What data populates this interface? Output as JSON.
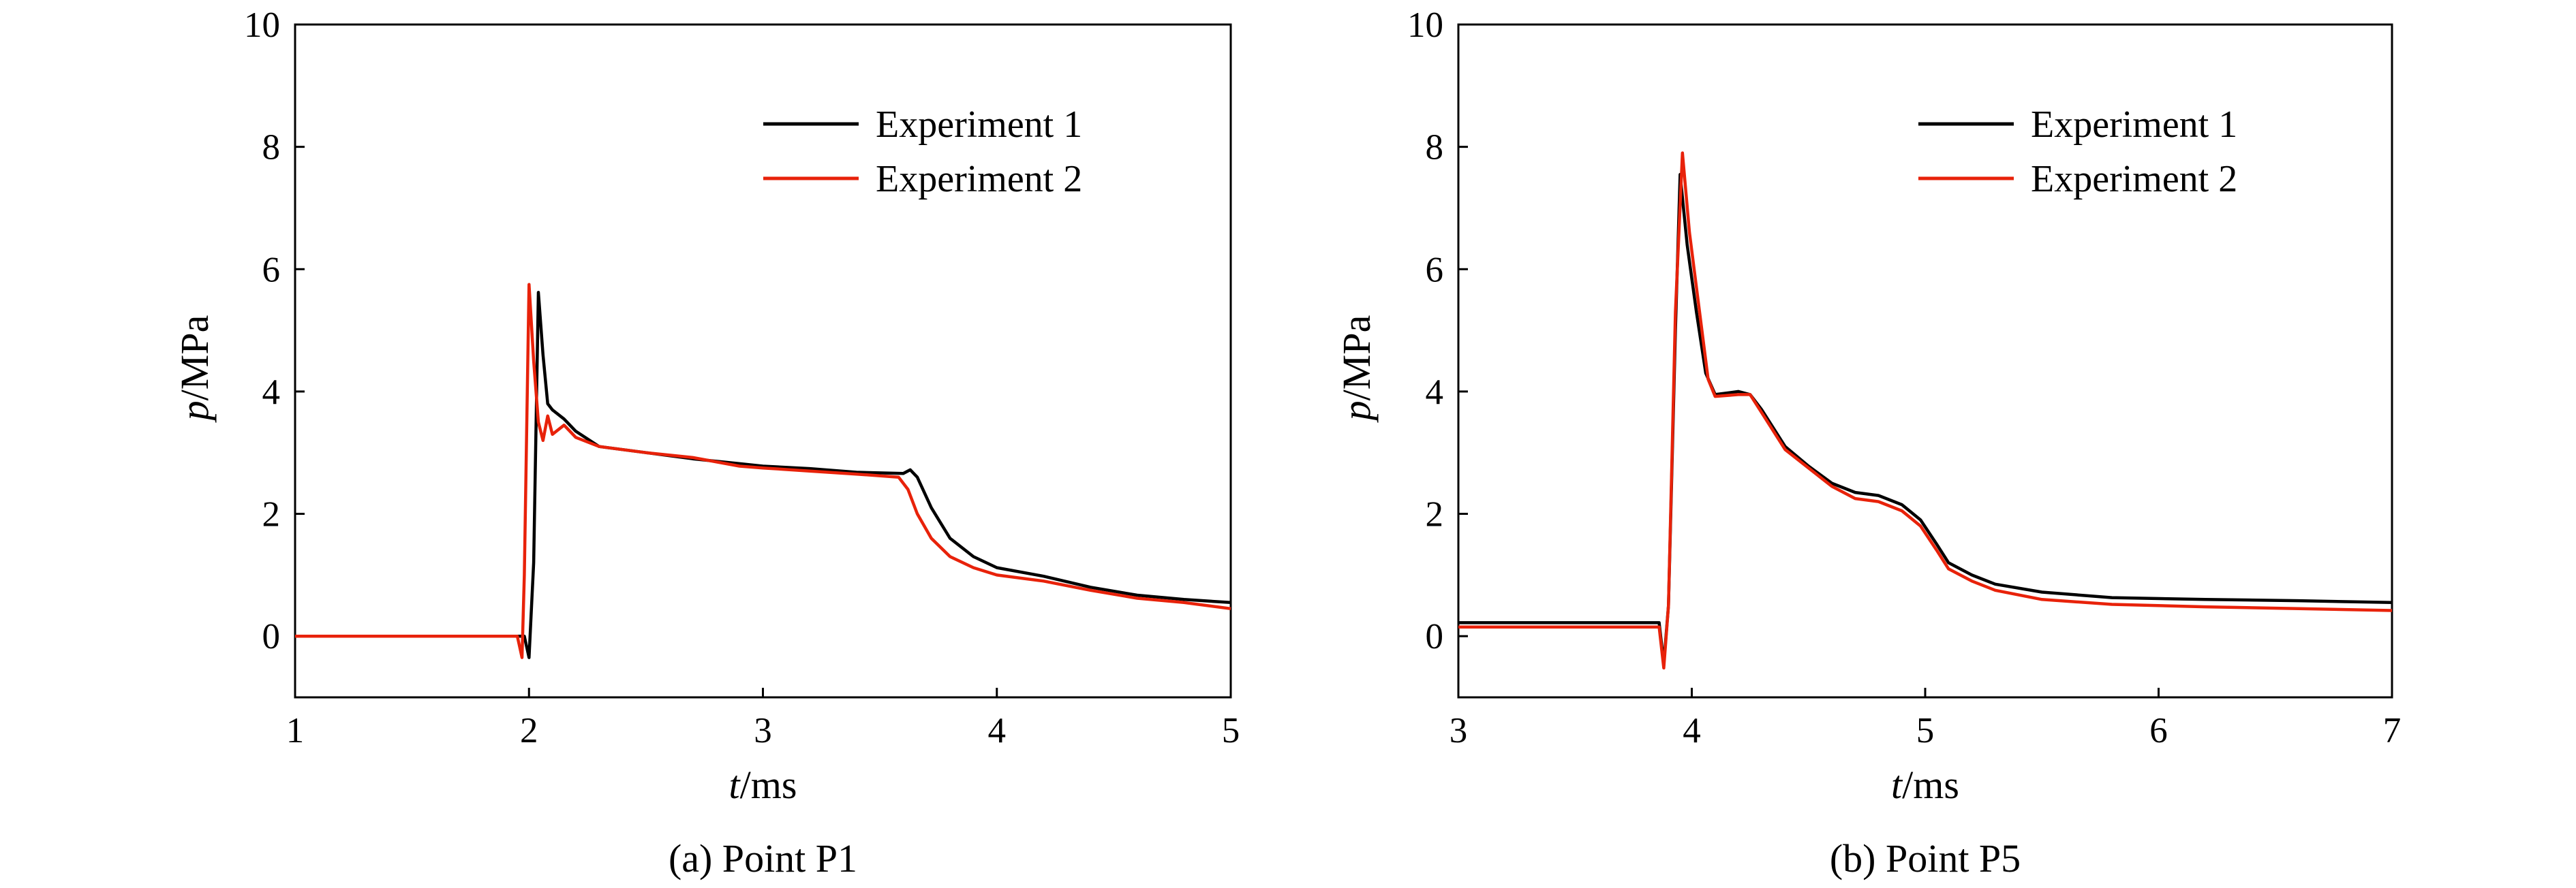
{
  "chart_data": [
    {
      "type": "line",
      "caption": "(a) Point P1",
      "xlabel_var": "t",
      "xlabel_unit": "/ms",
      "ylabel_var": "p",
      "ylabel_unit": "/MPa",
      "xlim": [
        1,
        5
      ],
      "ylim": [
        -1,
        10
      ],
      "xticks": [
        1,
        2,
        3,
        4,
        5
      ],
      "yticks": [
        0,
        2,
        4,
        6,
        8,
        10
      ],
      "grid": false,
      "legend_position": "top-right",
      "series": [
        {
          "name": "Experiment 1",
          "color": "#000000",
          "points": [
            [
              1.0,
              0.0
            ],
            [
              1.5,
              0.0
            ],
            [
              1.98,
              0.0
            ],
            [
              2.0,
              -0.35
            ],
            [
              2.02,
              1.2
            ],
            [
              2.04,
              5.62
            ],
            [
              2.06,
              4.6
            ],
            [
              2.08,
              3.8
            ],
            [
              2.1,
              3.7
            ],
            [
              2.15,
              3.55
            ],
            [
              2.2,
              3.35
            ],
            [
              2.3,
              3.1
            ],
            [
              2.5,
              3.0
            ],
            [
              2.7,
              2.9
            ],
            [
              2.9,
              2.82
            ],
            [
              3.0,
              2.78
            ],
            [
              3.2,
              2.74
            ],
            [
              3.4,
              2.68
            ],
            [
              3.6,
              2.66
            ],
            [
              3.63,
              2.72
            ],
            [
              3.66,
              2.6
            ],
            [
              3.72,
              2.1
            ],
            [
              3.8,
              1.6
            ],
            [
              3.9,
              1.3
            ],
            [
              4.0,
              1.12
            ],
            [
              4.2,
              0.98
            ],
            [
              4.4,
              0.8
            ],
            [
              4.6,
              0.67
            ],
            [
              4.8,
              0.6
            ],
            [
              5.0,
              0.55
            ]
          ]
        },
        {
          "name": "Experiment 2",
          "color": "#e8220a",
          "points": [
            [
              1.0,
              0.0
            ],
            [
              1.5,
              0.0
            ],
            [
              1.95,
              0.0
            ],
            [
              1.97,
              -0.35
            ],
            [
              1.98,
              1.0
            ],
            [
              2.0,
              5.75
            ],
            [
              2.02,
              4.5
            ],
            [
              2.04,
              3.5
            ],
            [
              2.06,
              3.2
            ],
            [
              2.08,
              3.6
            ],
            [
              2.1,
              3.3
            ],
            [
              2.15,
              3.45
            ],
            [
              2.2,
              3.25
            ],
            [
              2.3,
              3.1
            ],
            [
              2.5,
              3.0
            ],
            [
              2.7,
              2.92
            ],
            [
              2.9,
              2.78
            ],
            [
              3.0,
              2.75
            ],
            [
              3.2,
              2.7
            ],
            [
              3.4,
              2.65
            ],
            [
              3.58,
              2.6
            ],
            [
              3.62,
              2.4
            ],
            [
              3.66,
              2.0
            ],
            [
              3.72,
              1.6
            ],
            [
              3.8,
              1.3
            ],
            [
              3.9,
              1.12
            ],
            [
              4.0,
              1.0
            ],
            [
              4.2,
              0.9
            ],
            [
              4.4,
              0.75
            ],
            [
              4.6,
              0.62
            ],
            [
              4.8,
              0.55
            ],
            [
              5.0,
              0.45
            ]
          ]
        }
      ]
    },
    {
      "type": "line",
      "caption": "(b) Point P5",
      "xlabel_var": "t",
      "xlabel_unit": "/ms",
      "ylabel_var": "p",
      "ylabel_unit": "/MPa",
      "xlim": [
        3,
        7
      ],
      "ylim": [
        -1,
        10
      ],
      "xticks": [
        3,
        4,
        5,
        6,
        7
      ],
      "yticks": [
        0,
        2,
        4,
        6,
        8,
        10
      ],
      "grid": false,
      "legend_position": "top-right",
      "series": [
        {
          "name": "Experiment 1",
          "color": "#000000",
          "points": [
            [
              3.0,
              0.22
            ],
            [
              3.5,
              0.22
            ],
            [
              3.86,
              0.22
            ],
            [
              3.88,
              -0.45
            ],
            [
              3.9,
              0.5
            ],
            [
              3.93,
              5.0
            ],
            [
              3.95,
              7.55
            ],
            [
              3.98,
              6.4
            ],
            [
              4.02,
              5.3
            ],
            [
              4.06,
              4.3
            ],
            [
              4.1,
              3.95
            ],
            [
              4.2,
              4.0
            ],
            [
              4.25,
              3.95
            ],
            [
              4.3,
              3.7
            ],
            [
              4.4,
              3.1
            ],
            [
              4.5,
              2.78
            ],
            [
              4.6,
              2.5
            ],
            [
              4.7,
              2.35
            ],
            [
              4.8,
              2.3
            ],
            [
              4.9,
              2.15
            ],
            [
              4.98,
              1.9
            ],
            [
              5.05,
              1.5
            ],
            [
              5.1,
              1.2
            ],
            [
              5.2,
              1.0
            ],
            [
              5.3,
              0.85
            ],
            [
              5.5,
              0.72
            ],
            [
              5.8,
              0.63
            ],
            [
              6.2,
              0.6
            ],
            [
              6.6,
              0.58
            ],
            [
              7.0,
              0.55
            ]
          ]
        },
        {
          "name": "Experiment 2",
          "color": "#e8220a",
          "points": [
            [
              3.0,
              0.15
            ],
            [
              3.5,
              0.15
            ],
            [
              3.86,
              0.15
            ],
            [
              3.88,
              -0.52
            ],
            [
              3.9,
              0.5
            ],
            [
              3.93,
              5.3
            ],
            [
              3.96,
              7.9
            ],
            [
              3.99,
              6.6
            ],
            [
              4.03,
              5.4
            ],
            [
              4.07,
              4.2
            ],
            [
              4.1,
              3.92
            ],
            [
              4.2,
              3.95
            ],
            [
              4.25,
              3.95
            ],
            [
              4.3,
              3.65
            ],
            [
              4.4,
              3.05
            ],
            [
              4.5,
              2.75
            ],
            [
              4.6,
              2.45
            ],
            [
              4.7,
              2.25
            ],
            [
              4.8,
              2.2
            ],
            [
              4.9,
              2.05
            ],
            [
              4.98,
              1.8
            ],
            [
              5.05,
              1.4
            ],
            [
              5.1,
              1.1
            ],
            [
              5.2,
              0.9
            ],
            [
              5.3,
              0.75
            ],
            [
              5.5,
              0.6
            ],
            [
              5.8,
              0.52
            ],
            [
              6.2,
              0.48
            ],
            [
              6.6,
              0.45
            ],
            [
              7.0,
              0.42
            ]
          ]
        }
      ]
    }
  ]
}
